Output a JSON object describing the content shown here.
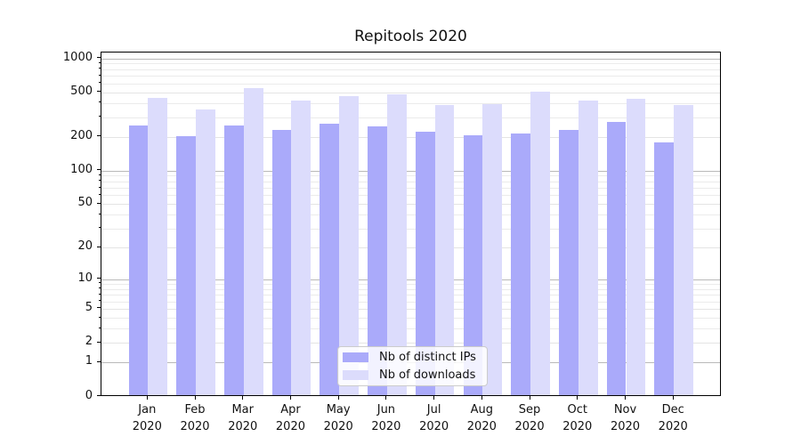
{
  "title": "Repitools 2020",
  "chart_data": {
    "type": "bar",
    "title": "Repitools 2020",
    "categories": [
      "Jan",
      "Feb",
      "Mar",
      "Apr",
      "May",
      "Jun",
      "Jul",
      "Aug",
      "Sep",
      "Oct",
      "Nov",
      "Dec"
    ],
    "category_year": "2020",
    "series": [
      {
        "name": "Nb of distinct IPs",
        "color": "#aaaafa",
        "values": [
          246,
          198,
          245,
          226,
          255,
          243,
          217,
          200,
          209,
          227,
          263,
          174
        ]
      },
      {
        "name": "Nb of downloads",
        "color": "#dcdcfc",
        "values": [
          435,
          342,
          528,
          412,
          448,
          463,
          377,
          379,
          497,
          410,
          428,
          372
        ]
      }
    ],
    "xlabel": "",
    "ylabel": "",
    "y_axis": {
      "scale": "log10(1+x)",
      "labeled_ticks": [
        0,
        1,
        2,
        5,
        10,
        20,
        50,
        100,
        200,
        500,
        1000
      ],
      "power_of_ten_gridlines": [
        1,
        10,
        100,
        1000
      ],
      "labeled_minor_gridlines": [
        2,
        5,
        20,
        50,
        200,
        500
      ],
      "minor_gridlines": [
        3,
        4,
        6,
        7,
        8,
        9,
        30,
        40,
        60,
        70,
        80,
        90,
        300,
        400,
        600,
        700,
        800,
        900
      ],
      "ylim": [
        0,
        1130
      ]
    },
    "grid": true,
    "legend": {
      "position": "lower-center",
      "entries": [
        "Nb of distinct IPs",
        "Nb of downloads"
      ]
    }
  },
  "colors": {
    "bar_dark": "#aaaafa",
    "bar_light": "#dcdcfc",
    "grid_major": "#b9b9b9",
    "grid_minor": "#ebebeb",
    "spine": "#000000",
    "background": "#ffffff"
  }
}
